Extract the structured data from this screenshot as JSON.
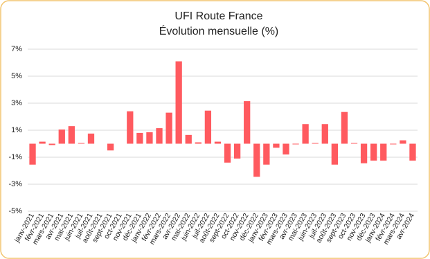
{
  "chart_data": {
    "type": "bar",
    "title": "UFI Route France",
    "subtitle": "Évolution mensuelle (%)",
    "categories": [
      "janv-2021",
      "févr-2021",
      "mars-2021",
      "avr-2021",
      "mai-2021",
      "juin-2021",
      "juil-2021",
      "août-2021",
      "sept-2021",
      "oct-2021",
      "nov-2021",
      "déc-2021",
      "janv-2022",
      "févr-2022",
      "mars-2022",
      "avr-2022",
      "mai-2022",
      "juin-2022",
      "juil-2022",
      "août-2022",
      "sept-2022",
      "oct-2022",
      "nov-2022",
      "déc-2022",
      "janv-2023",
      "févr-2023",
      "mars-2023",
      "avr-2023",
      "mai-2023",
      "juin-2023",
      "juil-2023",
      "août-2023",
      "sept-2023",
      "oct-2023",
      "nov-2023",
      "déc-2023",
      "janv-2024",
      "févr-2024",
      "mars-2024",
      "avr-2024"
    ],
    "values": [
      -1.55,
      0.15,
      -0.1,
      1.05,
      1.3,
      0.05,
      0.75,
      0,
      -0.5,
      0,
      2.4,
      0.8,
      0.85,
      1.15,
      2.3,
      6.1,
      0.65,
      0.1,
      2.45,
      0.15,
      -1.4,
      -1.1,
      3.15,
      -2.45,
      -1.55,
      -0.3,
      -0.8,
      -0.05,
      1.45,
      0.05,
      1.45,
      -1.55,
      2.35,
      0.05,
      -1.45,
      -1.25,
      -1.25,
      -0.05,
      0.25,
      -1.25
    ],
    "color": "#ff5a5f",
    "ylim": [
      -5,
      7
    ],
    "yticks": [
      {
        "value": -5,
        "label": "-5%"
      },
      {
        "value": -3,
        "label": "-3%"
      },
      {
        "value": -1,
        "label": "-1%"
      },
      {
        "value": 1,
        "label": "1%"
      },
      {
        "value": 3,
        "label": "3%"
      },
      {
        "value": 5,
        "label": "5%"
      },
      {
        "value": 7,
        "label": "7%"
      }
    ],
    "grid": true
  }
}
